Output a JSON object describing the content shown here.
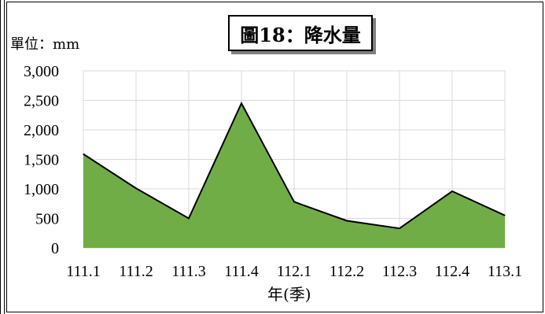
{
  "chart_data": {
    "type": "area",
    "title": "圖18：降水量",
    "unit_label": "單位：mm",
    "xlabel": "年(季)",
    "ylabel": "",
    "categories": [
      "111.1",
      "111.2",
      "111.3",
      "111.4",
      "112.1",
      "112.2",
      "112.3",
      "112.4",
      "113.1"
    ],
    "series": [
      {
        "values": [
          1590,
          1010,
          500,
          2450,
          780,
          460,
          330,
          960,
          550
        ]
      }
    ],
    "ylim": [
      0,
      3000
    ],
    "yticks": [
      0,
      500,
      1000,
      1500,
      2000,
      2500,
      3000
    ],
    "ytick_labels": [
      "0",
      "500",
      "1,000",
      "1,500",
      "2,000",
      "2,500",
      "3,000"
    ],
    "grid": true,
    "legend": "none",
    "colors": {
      "fill": "#70ad47",
      "line": "#000000",
      "grid": "#d9d9d9"
    }
  }
}
